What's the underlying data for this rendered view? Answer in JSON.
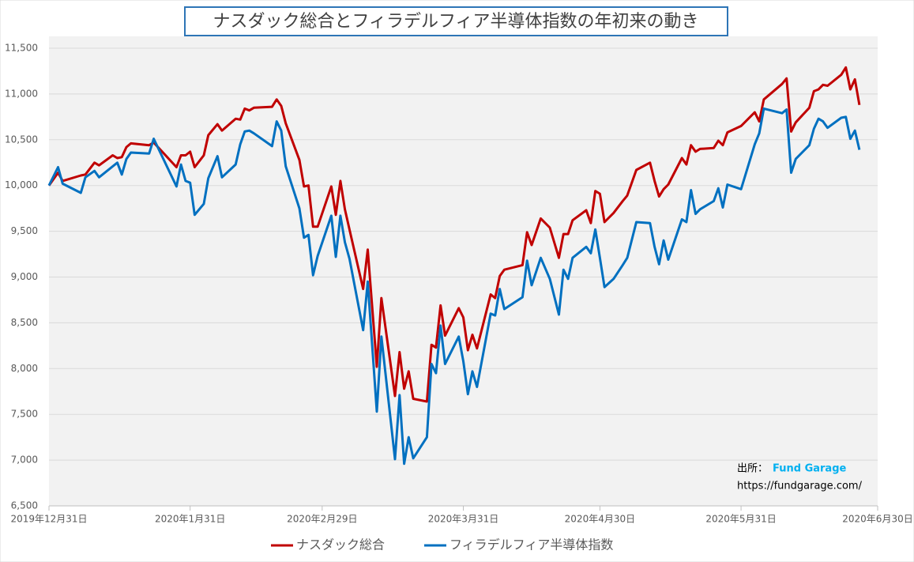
{
  "chart_data": {
    "type": "line",
    "title": "ナスダック総合とフィラデルフィア半導体指数の年初来の動き",
    "source_label": "出所：",
    "source_name": "Fund Garage",
    "source_url": "https://fundgarage.com/",
    "xlim": [
      "2019-12-31",
      "2020-06-30"
    ],
    "xticks": [
      {
        "value": "2019-12-31",
        "label": "2019年12月31日"
      },
      {
        "value": "2020-01-31",
        "label": "2020年1月31日"
      },
      {
        "value": "2020-02-29",
        "label": "2020年2月29日"
      },
      {
        "value": "2020-03-31",
        "label": "2020年3月31日"
      },
      {
        "value": "2020-04-30",
        "label": "2020年4月30日"
      },
      {
        "value": "2020-05-31",
        "label": "2020年5月31日"
      },
      {
        "value": "2020-06-30",
        "label": "2020年6月30日"
      }
    ],
    "ylim": [
      6500,
      11500
    ],
    "yticks": [
      {
        "value": 6500,
        "label": "6,500"
      },
      {
        "value": 7000,
        "label": "7,000"
      },
      {
        "value": 7500,
        "label": "7,500"
      },
      {
        "value": 8000,
        "label": "8,000"
      },
      {
        "value": 8500,
        "label": "8,500"
      },
      {
        "value": 9000,
        "label": "9,000"
      },
      {
        "value": 9500,
        "label": "9,500"
      },
      {
        "value": 10000,
        "label": "10,000"
      },
      {
        "value": 10500,
        "label": "10,500"
      },
      {
        "value": 11000,
        "label": "11,000"
      },
      {
        "value": 11500,
        "label": "11,500"
      }
    ],
    "grid": true,
    "legend": "bottom",
    "x": [
      "2019-12-31",
      "2020-01-02",
      "2020-01-03",
      "2020-01-07",
      "2020-01-08",
      "2020-01-10",
      "2020-01-11",
      "2020-01-14",
      "2020-01-15",
      "2020-01-16",
      "2020-01-17",
      "2020-01-18",
      "2020-01-22",
      "2020-01-23",
      "2020-01-28",
      "2020-01-29",
      "2020-01-30",
      "2020-01-31",
      "2020-02-01",
      "2020-02-03",
      "2020-02-04",
      "2020-02-06",
      "2020-02-07",
      "2020-02-10",
      "2020-02-11",
      "2020-02-12",
      "2020-02-13",
      "2020-02-14",
      "2020-02-18",
      "2020-02-19",
      "2020-02-20",
      "2020-02-21",
      "2020-02-24",
      "2020-02-25",
      "2020-02-26",
      "2020-02-27",
      "2020-02-28",
      "2020-03-02",
      "2020-03-03",
      "2020-03-04",
      "2020-03-05",
      "2020-03-06",
      "2020-03-09",
      "2020-03-10",
      "2020-03-12",
      "2020-03-13",
      "2020-03-16",
      "2020-03-17",
      "2020-03-18",
      "2020-03-19",
      "2020-03-20",
      "2020-03-23",
      "2020-03-24",
      "2020-03-25",
      "2020-03-26",
      "2020-03-27",
      "2020-03-30",
      "2020-03-31",
      "2020-04-01",
      "2020-04-02",
      "2020-04-03",
      "2020-04-06",
      "2020-04-07",
      "2020-04-08",
      "2020-04-09",
      "2020-04-13",
      "2020-04-14",
      "2020-04-15",
      "2020-04-17",
      "2020-04-19",
      "2020-04-21",
      "2020-04-22",
      "2020-04-23",
      "2020-04-24",
      "2020-04-27",
      "2020-04-28",
      "2020-04-29",
      "2020-04-30",
      "2020-05-01",
      "2020-05-03",
      "2020-05-05",
      "2020-05-06",
      "2020-05-08",
      "2020-05-11",
      "2020-05-12",
      "2020-05-13",
      "2020-05-14",
      "2020-05-15",
      "2020-05-18",
      "2020-05-19",
      "2020-05-20",
      "2020-05-21",
      "2020-05-22",
      "2020-05-25",
      "2020-05-26",
      "2020-05-27",
      "2020-05-28",
      "2020-05-31",
      "2020-06-03",
      "2020-06-04",
      "2020-06-05",
      "2020-06-09",
      "2020-06-10",
      "2020-06-11",
      "2020-06-12",
      "2020-06-15",
      "2020-06-16",
      "2020-06-17",
      "2020-06-18",
      "2020-06-19",
      "2020-06-22",
      "2020-06-23",
      "2020-06-24",
      "2020-06-25",
      "2020-06-26"
    ],
    "series": [
      {
        "name": "ナスダック総合",
        "color": "#c00000",
        "values": [
          10000,
          10140,
          10050,
          10110,
          10120,
          10250,
          10220,
          10330,
          10300,
          10310,
          10420,
          10460,
          10440,
          10470,
          10200,
          10330,
          10330,
          10370,
          10200,
          10330,
          10550,
          10670,
          10600,
          10730,
          10720,
          10840,
          10820,
          10850,
          10860,
          10940,
          10870,
          10680,
          10280,
          9990,
          10000,
          9550,
          9550,
          9990,
          9680,
          10050,
          9740,
          9520,
          8870,
          9300,
          8020,
          8770,
          7700,
          8180,
          7780,
          7970,
          7670,
          7640,
          8260,
          8230,
          8690,
          8360,
          8660,
          8560,
          8200,
          8370,
          8220,
          8810,
          8770,
          9010,
          9080,
          9130,
          9490,
          9350,
          9640,
          9540,
          9210,
          9470,
          9470,
          9620,
          9730,
          9590,
          9940,
          9910,
          9600,
          9700,
          9830,
          9890,
          10170,
          10250,
          10050,
          9880,
          9960,
          10010,
          10300,
          10230,
          10440,
          10370,
          10400,
          10410,
          10490,
          10440,
          10580,
          10650,
          10800,
          10700,
          10940,
          11110,
          11170,
          10590,
          10690,
          10850,
          11030,
          11050,
          11100,
          11090,
          11210,
          11290,
          11050,
          11160,
          10880
        ]
      },
      {
        "name": "フィラデルフィア半導体指数",
        "color": "#0070c0",
        "values": [
          10000,
          10200,
          10020,
          9920,
          10090,
          10160,
          10090,
          10210,
          10250,
          10120,
          10290,
          10360,
          10350,
          10510,
          9990,
          10230,
          10050,
          10030,
          9680,
          9800,
          10080,
          10320,
          10090,
          10230,
          10450,
          10590,
          10600,
          10570,
          10430,
          10700,
          10600,
          10210,
          9750,
          9430,
          9460,
          9020,
          9230,
          9670,
          9220,
          9670,
          9380,
          9200,
          8420,
          8950,
          7530,
          8350,
          7010,
          7710,
          6960,
          7250,
          7020,
          7250,
          8050,
          7950,
          8470,
          8050,
          8350,
          8080,
          7720,
          7970,
          7800,
          8600,
          8580,
          8870,
          8650,
          8780,
          9180,
          8910,
          9210,
          8980,
          8590,
          9080,
          8980,
          9210,
          9330,
          9260,
          9520,
          9210,
          8890,
          8980,
          9130,
          9210,
          9600,
          9590,
          9330,
          9140,
          9400,
          9190,
          9630,
          9600,
          9950,
          9690,
          9740,
          9830,
          9970,
          9760,
          10010,
          9960,
          10450,
          10570,
          10840,
          10790,
          10830,
          10140,
          10290,
          10440,
          10620,
          10730,
          10700,
          10630,
          10740,
          10750,
          10510,
          10600,
          10390
        ]
      }
    ]
  }
}
